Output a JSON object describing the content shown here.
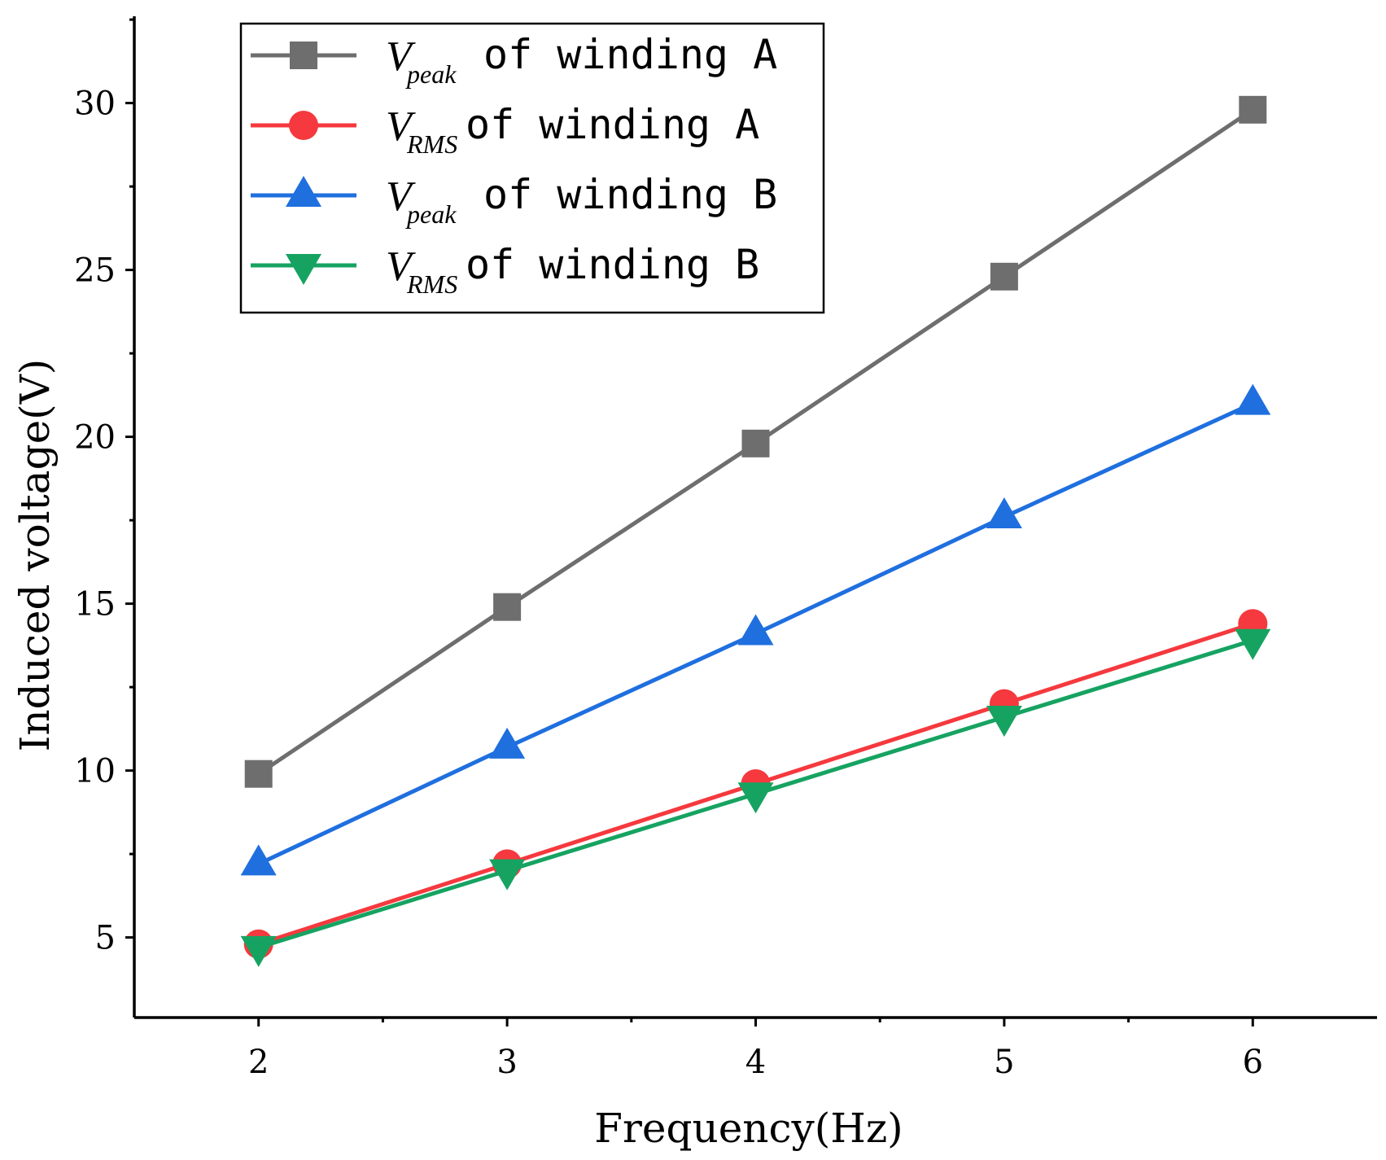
{
  "chart_data": {
    "type": "line",
    "title": "",
    "xlabel": "Frequency(Hz)",
    "ylabel": "Induced voltage(V)",
    "x": [
      2,
      3,
      4,
      5,
      6
    ],
    "xlim": [
      1.5,
      6.5
    ],
    "ylim": [
      2.6,
      32.6
    ],
    "x_ticks": [
      "2",
      "3",
      "4",
      "5",
      "6"
    ],
    "x_tick_values": [
      2,
      3,
      4,
      5,
      6
    ],
    "y_ticks": [
      "5",
      "10",
      "15",
      "20",
      "25",
      "30"
    ],
    "y_tick_values": [
      5,
      10,
      15,
      20,
      25,
      30
    ],
    "grid": false,
    "legend_position": "top-left",
    "series": [
      {
        "name": "Vpeak of winding A",
        "symbol": "V",
        "subscript": "peak",
        "suffix": " of winding A",
        "marker": "square",
        "color": "#6e6e6e",
        "values": [
          9.9,
          14.9,
          19.8,
          24.8,
          29.8
        ]
      },
      {
        "name": "VRMS of winding A",
        "symbol": "V",
        "subscript": "RMS",
        "suffix": " of winding A",
        "marker": "circle",
        "color": "#f5393e",
        "values": [
          4.8,
          7.2,
          9.6,
          12.0,
          14.4
        ]
      },
      {
        "name": "Vpeak of winding B",
        "symbol": "V",
        "subscript": "peak",
        "suffix": " of winding B",
        "marker": "triangle-up",
        "color": "#1f6fdf",
        "values": [
          7.2,
          10.7,
          14.1,
          17.6,
          21.0
        ]
      },
      {
        "name": "VRMS of winding B",
        "symbol": "V",
        "subscript": "RMS",
        "suffix": " of winding B",
        "marker": "triangle-down",
        "color": "#16a361",
        "values": [
          4.7,
          7.0,
          9.3,
          11.6,
          13.9
        ]
      }
    ]
  }
}
